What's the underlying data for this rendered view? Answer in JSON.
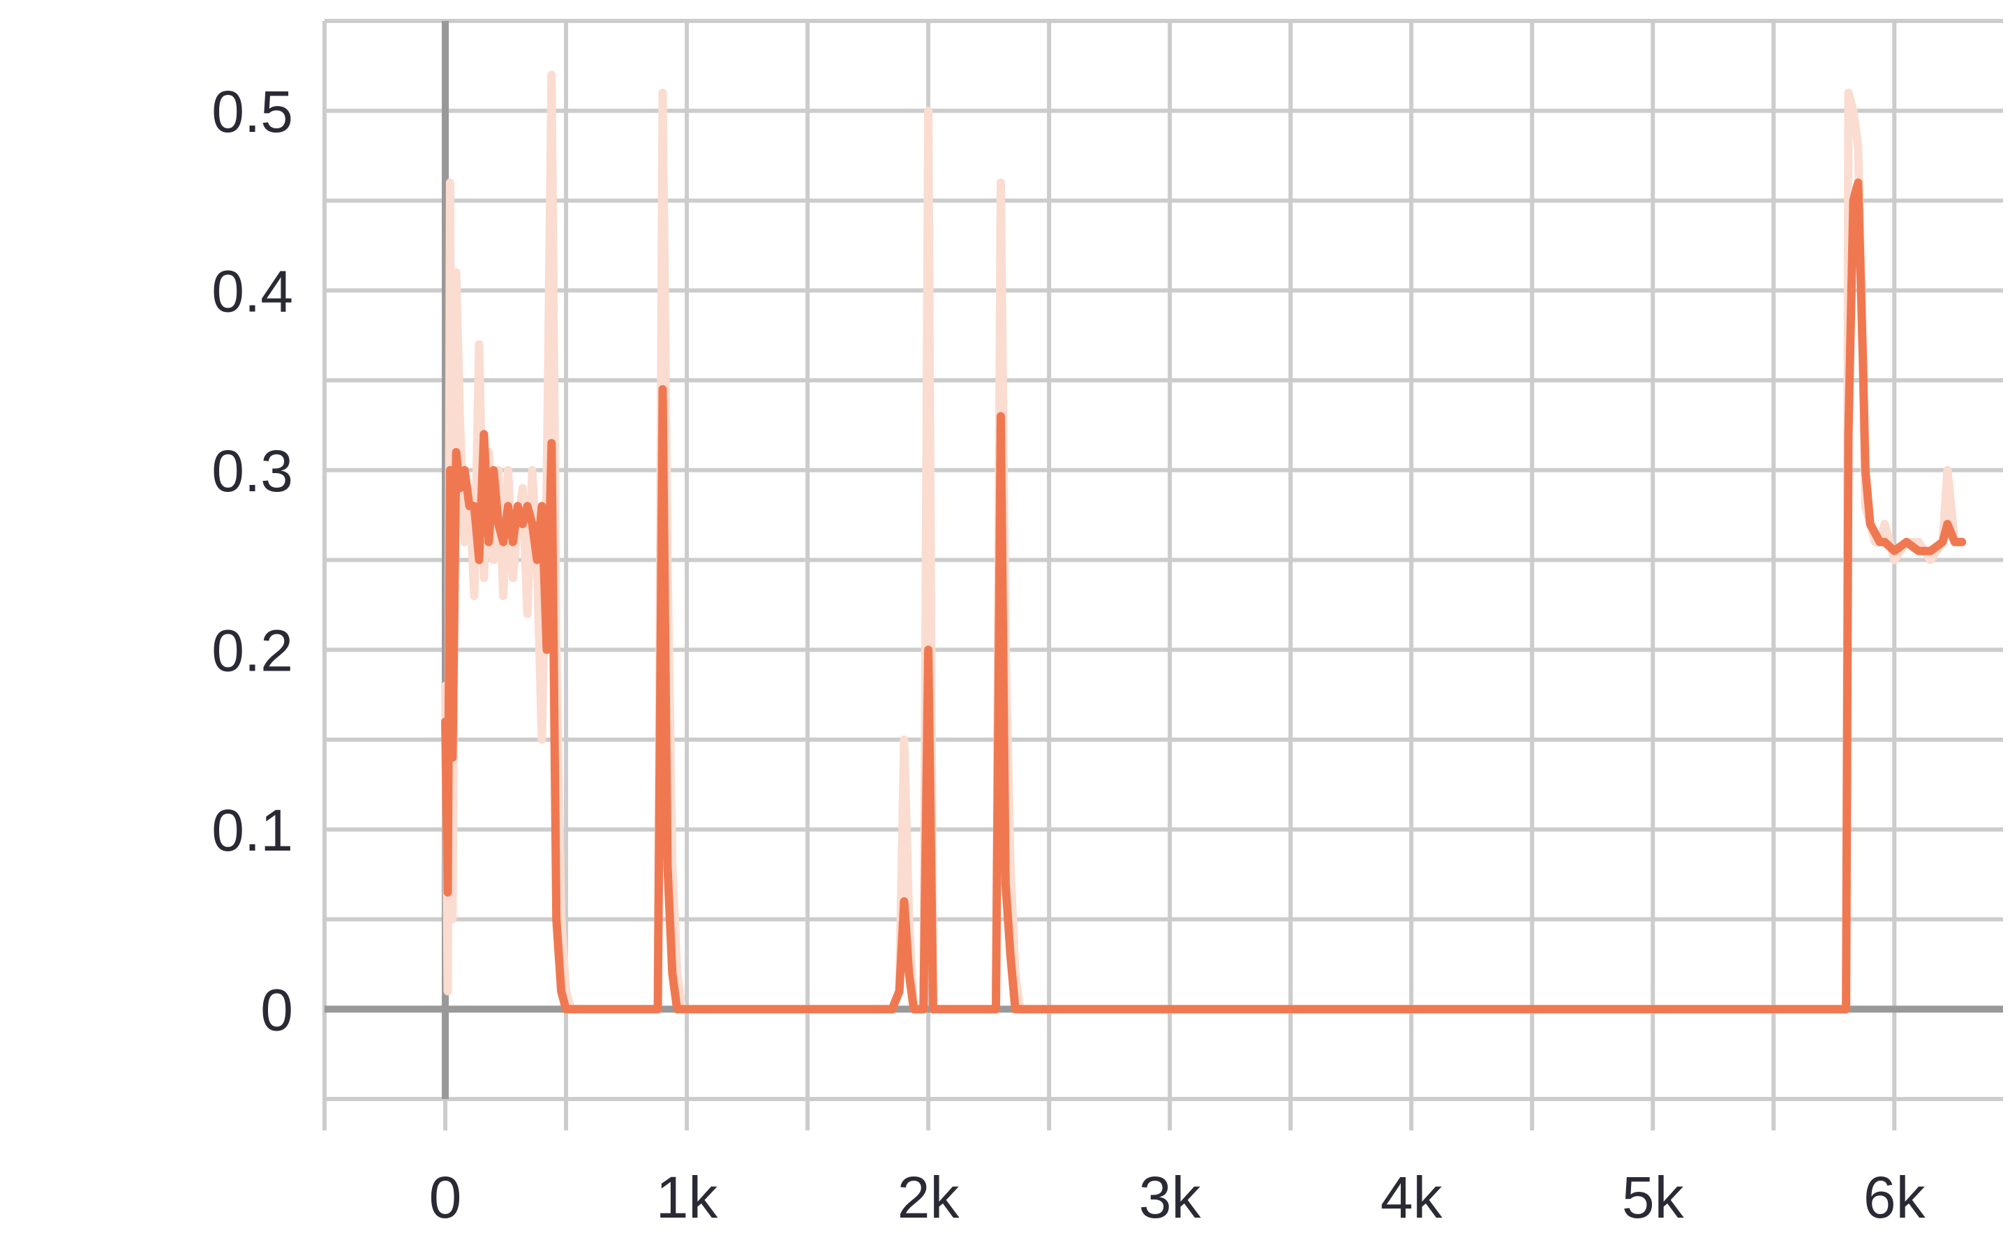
{
  "chart_data": {
    "type": "line",
    "title": "",
    "xlabel": "",
    "ylabel": "",
    "xlim": [
      -500,
      6450
    ],
    "ylim": [
      -0.05,
      0.55
    ],
    "grid": true,
    "x_ticks": [
      0,
      1000,
      2000,
      3000,
      4000,
      5000,
      6000
    ],
    "x_tick_labels": [
      "0",
      "1k",
      "2k",
      "3k",
      "4k",
      "5k",
      "6k"
    ],
    "y_ticks": [
      0,
      0.1,
      0.2,
      0.3,
      0.4,
      0.5
    ],
    "y_tick_labels": [
      "0",
      "0.1",
      "0.2",
      "0.3",
      "0.4",
      "0.5"
    ],
    "colors": {
      "smoothed": "#f07850",
      "raw": "#fbdcd0",
      "grid": "#cccccc",
      "axis": "#999999"
    },
    "series": [
      {
        "role": "raw",
        "x": [
          0,
          10,
          20,
          30,
          45,
          60,
          80,
          100,
          120,
          140,
          160,
          180,
          200,
          220,
          240,
          260,
          280,
          300,
          320,
          340,
          360,
          380,
          400,
          420,
          440,
          460,
          480,
          500,
          520,
          540,
          560,
          580,
          600,
          700,
          800,
          850,
          880,
          900,
          920,
          940,
          960,
          980,
          1000,
          1100,
          1500,
          1800,
          1850,
          1880,
          1900,
          1920,
          1940,
          1960,
          1980,
          2000,
          2020,
          2040,
          2100,
          2200,
          2280,
          2300,
          2320,
          2340,
          2360,
          2380,
          2400,
          2420,
          2500,
          3000,
          4000,
          5000,
          5800,
          5810,
          5830,
          5850,
          5870,
          5880,
          5900,
          5920,
          5940,
          5960,
          6000,
          6050,
          6100,
          6150,
          6200,
          6220,
          6250,
          6280
        ],
        "y": [
          0.18,
          0.01,
          0.46,
          0.05,
          0.41,
          0.33,
          0.26,
          0.29,
          0.23,
          0.37,
          0.24,
          0.31,
          0.25,
          0.3,
          0.23,
          0.3,
          0.24,
          0.27,
          0.29,
          0.22,
          0.3,
          0.25,
          0.15,
          0.29,
          0.52,
          0.2,
          0.05,
          0.01,
          0.0,
          0.0,
          0.0,
          0.0,
          0.0,
          0.0,
          0.0,
          0.0,
          0.0,
          0.51,
          0.25,
          0.08,
          0.02,
          0.0,
          0.0,
          0.0,
          0.0,
          0.0,
          0.0,
          0.01,
          0.15,
          0.05,
          0.0,
          0.0,
          0.0,
          0.5,
          0.0,
          0.0,
          0.0,
          0.0,
          0.0,
          0.46,
          0.2,
          0.08,
          0.02,
          0.0,
          0.0,
          0.0,
          0.0,
          0.0,
          0.0,
          0.0,
          0.0,
          0.51,
          0.5,
          0.48,
          0.36,
          0.28,
          0.27,
          0.26,
          0.26,
          0.27,
          0.25,
          0.26,
          0.26,
          0.25,
          0.26,
          0.3,
          0.26,
          0.26
        ]
      },
      {
        "role": "smoothed",
        "x": [
          0,
          10,
          20,
          30,
          45,
          60,
          80,
          100,
          120,
          140,
          160,
          180,
          200,
          220,
          240,
          260,
          280,
          300,
          320,
          340,
          360,
          380,
          400,
          420,
          440,
          460,
          480,
          500,
          520,
          540,
          560,
          580,
          600,
          700,
          800,
          850,
          880,
          900,
          920,
          940,
          960,
          980,
          1000,
          1100,
          1500,
          1800,
          1850,
          1880,
          1900,
          1920,
          1940,
          1960,
          1980,
          2000,
          2020,
          2040,
          2100,
          2200,
          2280,
          2300,
          2320,
          2340,
          2360,
          2380,
          2400,
          2420,
          2500,
          3000,
          4000,
          5000,
          5800,
          5810,
          5830,
          5850,
          5870,
          5880,
          5900,
          5920,
          5940,
          5960,
          6000,
          6050,
          6100,
          6150,
          6200,
          6220,
          6250,
          6280
        ],
        "y": [
          0.16,
          0.065,
          0.3,
          0.14,
          0.31,
          0.29,
          0.3,
          0.28,
          0.28,
          0.25,
          0.32,
          0.26,
          0.3,
          0.27,
          0.26,
          0.28,
          0.26,
          0.28,
          0.27,
          0.28,
          0.27,
          0.25,
          0.28,
          0.2,
          0.315,
          0.05,
          0.01,
          0.0,
          0.0,
          0.0,
          0.0,
          0.0,
          0.0,
          0.0,
          0.0,
          0.0,
          0.0,
          0.345,
          0.08,
          0.02,
          0.0,
          0.0,
          0.0,
          0.0,
          0.0,
          0.0,
          0.0,
          0.01,
          0.06,
          0.02,
          0.0,
          0.0,
          0.0,
          0.2,
          0.0,
          0.0,
          0.0,
          0.0,
          0.0,
          0.33,
          0.07,
          0.03,
          0.0,
          0.0,
          0.0,
          0.0,
          0.0,
          0.0,
          0.0,
          0.0,
          0.0,
          0.32,
          0.45,
          0.46,
          0.36,
          0.3,
          0.27,
          0.265,
          0.26,
          0.26,
          0.255,
          0.26,
          0.255,
          0.255,
          0.26,
          0.27,
          0.26,
          0.26
        ]
      }
    ]
  }
}
